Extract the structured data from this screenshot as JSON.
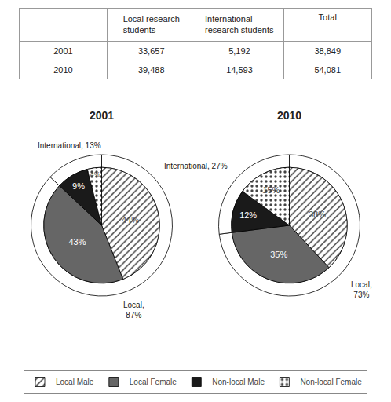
{
  "chart_data": [
    {
      "type": "table",
      "headers": [
        null,
        "Local research\nstudents",
        "International\nresearch students",
        "Total"
      ],
      "rows": [
        [
          "2001",
          "33,657",
          "5,192",
          "38,849"
        ],
        [
          "2010",
          "39,488",
          "14,593",
          "54,081"
        ]
      ]
    },
    {
      "type": "pie",
      "title": "2001",
      "data_labels": true,
      "legend": "bottom",
      "series": [
        {
          "categories": [
            "Local Male",
            "Local Female",
            "Non-local Male",
            "Non-local Female"
          ],
          "values": [
            44,
            43,
            9,
            4
          ],
          "value_labels": [
            "44%",
            "43%",
            "9%",
            "4%"
          ],
          "colors": [
            "#d0d0d0",
            "#666666",
            "#1a1a1a",
            "#e8e8e8"
          ]
        },
        {
          "values": [
            87,
            13
          ],
          "value_labels": [
            "Local,\n87%",
            "International, 13%"
          ],
          "color": "#ffffff"
        }
      ]
    },
    {
      "type": "pie",
      "title": "2010",
      "data_labels": true,
      "series": [
        {
          "categories": [
            "Local Male",
            "Local Female",
            "Non-local Male",
            "Non-local Female"
          ],
          "values": [
            38,
            35,
            12,
            15
          ],
          "value_labels": [
            "38%",
            "35%",
            "12%",
            "15%"
          ],
          "colors": [
            "#d0d0d0",
            "#666666",
            "#1a1a1a",
            "#e8e8e8"
          ]
        },
        {
          "values": [
            73,
            27
          ],
          "value_labels": [
            "Local,\n73%",
            "International, 27%"
          ],
          "color": "#ffffff"
        }
      ]
    }
  ]
}
